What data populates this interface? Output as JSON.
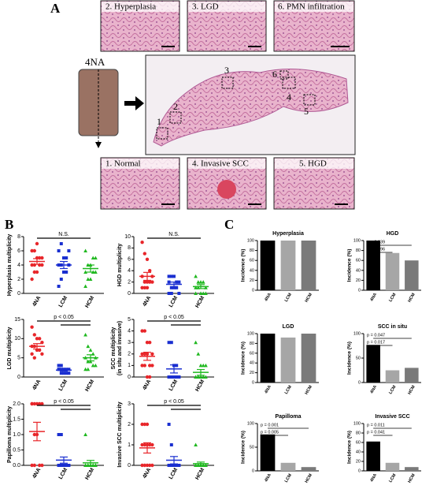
{
  "panel_labels": [
    "A",
    "B",
    "C"
  ],
  "panel_a": {
    "top_images": [
      "2. Hyperplasia",
      "3. LGD",
      "6. PMN infiltration"
    ],
    "bottom_images": [
      "1. Normal",
      "4. Invasive SCC",
      "5. HGD"
    ],
    "specimen": "4NA",
    "regions": [
      "1",
      "2",
      "3",
      "4",
      "5",
      "6"
    ]
  },
  "chart_data": [
    {
      "type": "dot",
      "y_label": [
        "Hyperplasia multiplicity"
      ],
      "categories": [
        "4NA",
        "LCM",
        "HCM"
      ],
      "ylim": [
        0,
        8
      ],
      "yticks": [
        0,
        2,
        4,
        6,
        8
      ],
      "comparison": "N.S.",
      "groups": [
        {
          "color": "#e8262a",
          "values": [
            2,
            3,
            3,
            4,
            4,
            4,
            4,
            5,
            5,
            5,
            6,
            6,
            7
          ],
          "mean": 4.5,
          "sem": 0.4
        },
        {
          "color": "#1a2fd0",
          "values": [
            1,
            2,
            3,
            3,
            4,
            4,
            4,
            5,
            5,
            6,
            6,
            7
          ],
          "mean": 4,
          "sem": 0.5
        },
        {
          "color": "#1fb81f",
          "values": [
            1,
            2,
            2,
            3,
            3,
            3,
            4,
            4,
            5,
            5,
            6
          ],
          "mean": 3.5,
          "sem": 0.5
        }
      ]
    },
    {
      "type": "dot",
      "y_label": [
        "HGD multiplicity"
      ],
      "categories": [
        "4NA",
        "LCM",
        "HCM"
      ],
      "ylim": [
        0,
        10
      ],
      "yticks": [
        0,
        2,
        4,
        6,
        8,
        10
      ],
      "comparison": "N.S.",
      "groups": [
        {
          "color": "#e8262a",
          "values": [
            9,
            7,
            6,
            4,
            3,
            3,
            2,
            2,
            2,
            2,
            1,
            1,
            1
          ],
          "mean": 3,
          "sem": 0.7
        },
        {
          "color": "#1a2fd0",
          "values": [
            3,
            3,
            3,
            2,
            2,
            2,
            1,
            1,
            1,
            0,
            0,
            0
          ],
          "mean": 1.6,
          "sem": 0.4
        },
        {
          "color": "#1fb81f",
          "values": [
            3,
            2,
            2,
            2,
            1,
            1,
            1,
            0,
            0,
            0,
            0
          ],
          "mean": 1.2,
          "sem": 0.35
        }
      ]
    },
    {
      "type": "dot",
      "y_label": [
        "LGD multiplicity"
      ],
      "categories": [
        "4NA",
        "LCM",
        "HCM"
      ],
      "ylim": [
        0,
        15
      ],
      "yticks": [
        0,
        5,
        10,
        15
      ],
      "comparison": "p < 0.05",
      "groups": [
        {
          "color": "#e8262a",
          "values": [
            13,
            11,
            10,
            10,
            9,
            8,
            8,
            7,
            7,
            6,
            6,
            5
          ],
          "mean": 8,
          "sem": 0.7
        },
        {
          "color": "#1a2fd0",
          "values": [
            3,
            3,
            2,
            2,
            2,
            2,
            1,
            1,
            1,
            1,
            2,
            2
          ],
          "mean": 1.8,
          "sem": 0.25
        },
        {
          "color": "#1fb81f",
          "values": [
            11,
            8,
            7,
            6,
            5,
            5,
            4,
            4,
            3,
            3,
            2,
            2
          ],
          "mean": 5,
          "sem": 0.8
        }
      ]
    },
    {
      "type": "dot",
      "y_label": [
        "SCC multiplicity",
        "(in situ and invasive)"
      ],
      "categories": [
        "4NA",
        "LCM",
        "HCM"
      ],
      "ylim": [
        0,
        5
      ],
      "yticks": [
        0,
        1,
        2,
        3,
        4,
        5
      ],
      "comparison": "p < 0.05",
      "groups": [
        {
          "color": "#e8262a",
          "values": [
            4,
            4,
            3,
            3,
            2,
            2,
            2,
            2,
            1,
            1,
            1,
            1,
            0,
            0
          ],
          "mean": 1.8,
          "sem": 0.35
        },
        {
          "color": "#1a2fd0",
          "values": [
            3,
            3,
            1,
            1,
            0,
            0,
            0,
            0,
            0,
            0,
            0,
            0
          ],
          "mean": 0.7,
          "sem": 0.35
        },
        {
          "color": "#1fb81f",
          "values": [
            3,
            2,
            1,
            1,
            1,
            0,
            0,
            0,
            0,
            0,
            0,
            0
          ],
          "mean": 0.4,
          "sem": 0.25
        }
      ]
    },
    {
      "type": "dot",
      "y_label": [
        "Papilloma multiplicity"
      ],
      "categories": [
        "4NA",
        "LCM",
        "HCM"
      ],
      "ylim": [
        0,
        2
      ],
      "yticks": [
        {
          "value": 0,
          "label": "0.0"
        },
        0.5,
        {
          "value": 1,
          "label": "1.0"
        },
        1.5,
        {
          "value": 2,
          "label": "2.0"
        }
      ],
      "comparison": "p < 0.05",
      "groups": [
        {
          "color": "#e8262a",
          "values": [
            2,
            2,
            2,
            2,
            2,
            2,
            1,
            1,
            0,
            0,
            0,
            0
          ],
          "mean": 1.1,
          "sem": 0.3
        },
        {
          "color": "#1a2fd0",
          "values": [
            1,
            1,
            0,
            0,
            0,
            0,
            0,
            0,
            0,
            0,
            0,
            0
          ],
          "mean": 0.17,
          "sem": 0.1
        },
        {
          "color": "#1fb81f",
          "values": [
            1,
            0,
            0,
            0,
            0,
            0,
            0,
            0,
            0,
            0,
            0,
            0
          ],
          "mean": 0.08,
          "sem": 0.08
        }
      ]
    },
    {
      "type": "dot",
      "y_label": [
        "Invasive SCC multiplicity"
      ],
      "categories": [
        "4NA",
        "LCM",
        "HCM"
      ],
      "ylim": [
        0,
        3
      ],
      "yticks": [
        0,
        1,
        2,
        3
      ],
      "comparison": "p < 0.05",
      "groups": [
        {
          "color": "#e8262a",
          "values": [
            2,
            2,
            2,
            1,
            1,
            1,
            1,
            1,
            0,
            0,
            0,
            0,
            0
          ],
          "mean": 0.85,
          "sem": 0.25
        },
        {
          "color": "#1a2fd0",
          "values": [
            2,
            1,
            0,
            0,
            0,
            0,
            0,
            0,
            0,
            0,
            0,
            0
          ],
          "mean": 0.25,
          "sem": 0.18
        },
        {
          "color": "#1fb81f",
          "values": [
            1,
            0,
            0,
            0,
            0,
            0,
            0,
            0,
            0,
            0,
            0,
            0
          ],
          "mean": 0.08,
          "sem": 0.08
        }
      ]
    },
    {
      "type": "bar",
      "title": "Hyperplasia",
      "y_label": "Incidence (%)",
      "categories": [
        "4NA",
        "LCM",
        "HCM"
      ],
      "colors": [
        "#000000",
        "#a6a6a6",
        "#7a7a7a"
      ],
      "values": [
        100,
        100,
        100
      ],
      "ylim": [
        0,
        100
      ],
      "yticks": [
        0,
        20,
        40,
        60,
        80,
        100
      ],
      "annotations": []
    },
    {
      "type": "bar",
      "title": "HGD",
      "y_label": "Incidence (%)",
      "categories": [
        "4NA",
        "LCM",
        "HCM"
      ],
      "colors": [
        "#000000",
        "#a6a6a6",
        "#7a7a7a"
      ],
      "values": [
        100,
        75,
        60
      ],
      "ylim": [
        0,
        100
      ],
      "yticks": [
        0,
        20,
        40,
        60,
        80,
        100
      ],
      "annotations": [
        "p = 0.039",
        "p = 0.096"
      ]
    },
    {
      "type": "bar",
      "title": "LGD",
      "y_label": "Incidence (%)",
      "categories": [
        "4NA",
        "LCM",
        "HCM"
      ],
      "colors": [
        "#000000",
        "#a6a6a6",
        "#7a7a7a"
      ],
      "values": [
        100,
        92,
        100
      ],
      "ylim": [
        0,
        100
      ],
      "yticks": [
        0,
        20,
        40,
        60,
        80,
        100
      ],
      "annotations": []
    },
    {
      "type": "bar",
      "title": "SCC in situ",
      "y_label": "Incidence (%)",
      "categories": [
        "4NA",
        "LCM",
        "HCM"
      ],
      "colors": [
        "#000000",
        "#a6a6a6",
        "#7a7a7a"
      ],
      "values": [
        77,
        25,
        30
      ],
      "ylim": [
        0,
        100
      ],
      "yticks": [
        0,
        50,
        100
      ],
      "annotations": [
        "p = 0.047",
        "p = 0.017"
      ]
    },
    {
      "type": "bar",
      "title": "Papilloma",
      "y_label": "Incidence (%)",
      "categories": [
        "4NA",
        "LCM",
        "HCM"
      ],
      "colors": [
        "#000000",
        "#a6a6a6",
        "#7a7a7a"
      ],
      "values": [
        77,
        17,
        8
      ],
      "ylim": [
        0,
        100
      ],
      "yticks": [
        0,
        50,
        100
      ],
      "annotations": [
        "p = 0.001",
        "p = 0.005"
      ]
    },
    {
      "type": "bar",
      "title": "Invasive SCC",
      "y_label": "Incidence (%)",
      "categories": [
        "4NA",
        "LCM",
        "HCM"
      ],
      "colors": [
        "#000000",
        "#a6a6a6",
        "#7a7a7a"
      ],
      "values": [
        62,
        17,
        8
      ],
      "ylim": [
        0,
        100
      ],
      "yticks": [
        0,
        20,
        40,
        60,
        80,
        100
      ],
      "annotations": [
        "p = 0.011",
        "p = 0.041"
      ]
    }
  ]
}
